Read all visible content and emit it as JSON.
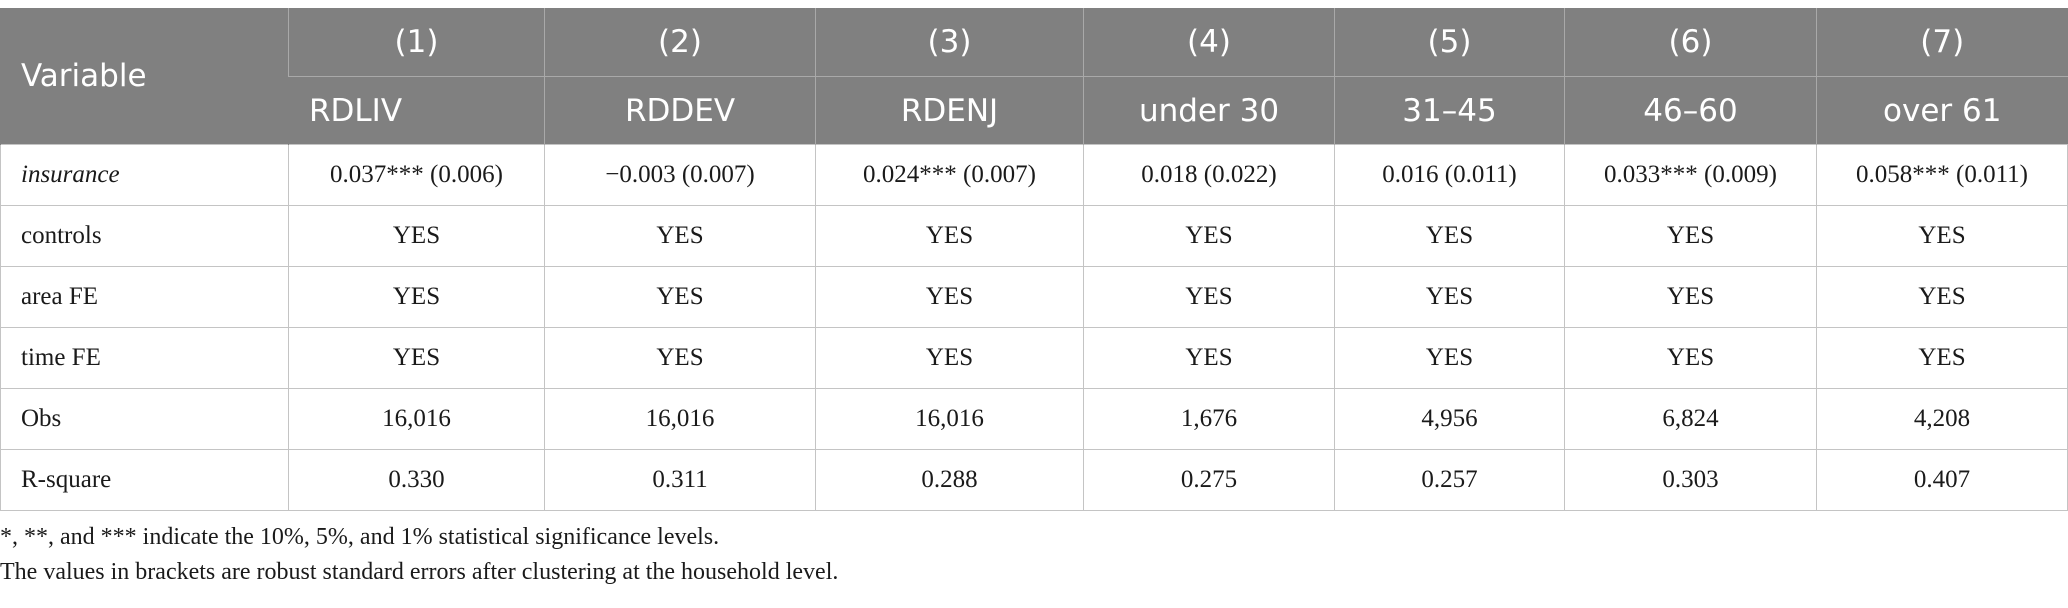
{
  "table": {
    "header_label": "Variable",
    "columns": [
      {
        "number": "(1)",
        "name": "RDLIV"
      },
      {
        "number": "(2)",
        "name": "RDDEV"
      },
      {
        "number": "(3)",
        "name": "RDENJ"
      },
      {
        "number": "(4)",
        "name": "under 30"
      },
      {
        "number": "(5)",
        "name": "31–45"
      },
      {
        "number": "(6)",
        "name": "46–60"
      },
      {
        "number": "(7)",
        "name": "over 61"
      }
    ],
    "rows": [
      {
        "label": "insurance",
        "italic": true,
        "cells": [
          "0.037*** (0.006)",
          "−0.003 (0.007)",
          "0.024*** (0.007)",
          "0.018 (0.022)",
          "0.016 (0.011)",
          "0.033*** (0.009)",
          "0.058*** (0.011)"
        ]
      },
      {
        "label": "controls",
        "italic": false,
        "cells": [
          "YES",
          "YES",
          "YES",
          "YES",
          "YES",
          "YES",
          "YES"
        ]
      },
      {
        "label": "area FE",
        "italic": false,
        "cells": [
          "YES",
          "YES",
          "YES",
          "YES",
          "YES",
          "YES",
          "YES"
        ]
      },
      {
        "label": "time FE",
        "italic": false,
        "cells": [
          "YES",
          "YES",
          "YES",
          "YES",
          "YES",
          "YES",
          "YES"
        ]
      },
      {
        "label": "Obs",
        "italic": false,
        "cells": [
          "16,016",
          "16,016",
          "16,016",
          "1,676",
          "4,956",
          "6,824",
          "4,208"
        ]
      },
      {
        "label": "R-square",
        "italic": false,
        "cells": [
          "0.330",
          "0.311",
          "0.288",
          "0.275",
          "0.257",
          "0.303",
          "0.407"
        ]
      }
    ]
  },
  "notes": [
    "*, **, and *** indicate the 10%, 5%, and 1% statistical significance levels.",
    "The values in brackets are robust standard errors after clustering at the household level."
  ],
  "colors": {
    "header_bg": "#808080",
    "header_text": "#ffffff",
    "grid": "#c4c4c4"
  }
}
